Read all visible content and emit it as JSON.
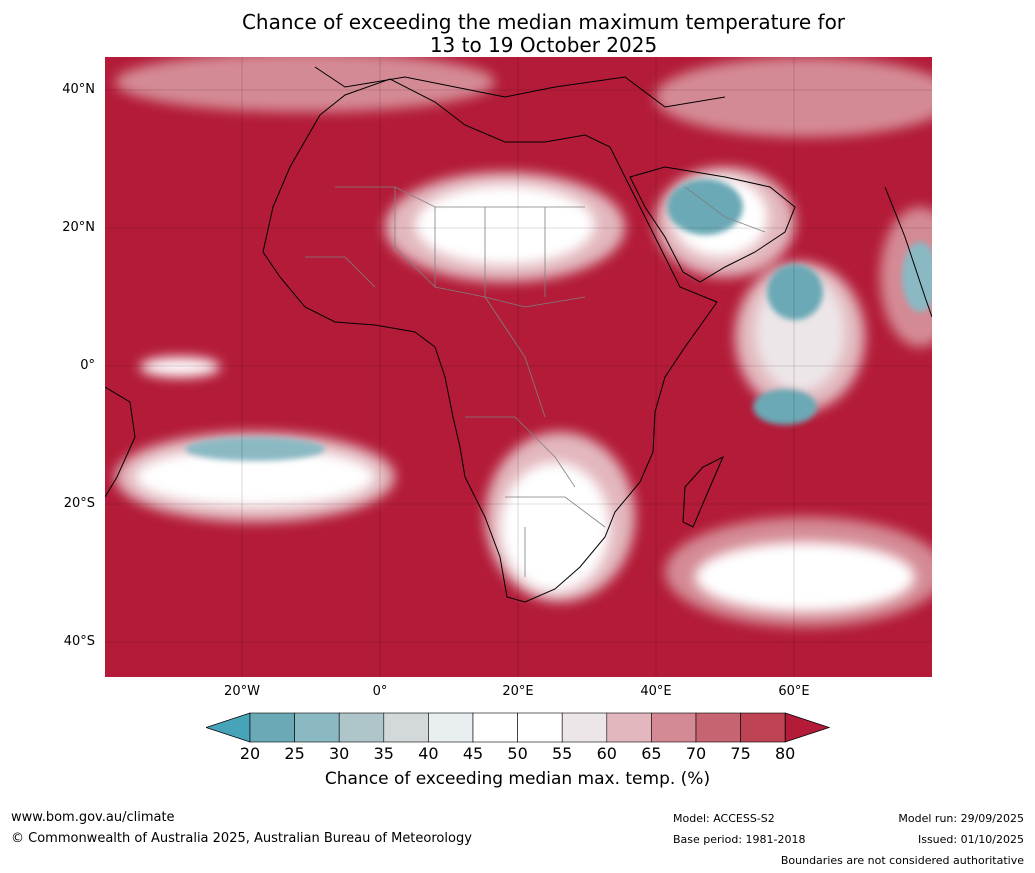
{
  "title": {
    "line1": "Chance of exceeding the median maximum temperature for",
    "line2": "13 to 19 October 2025"
  },
  "map": {
    "lat_labels": [
      "40°N",
      "20°N",
      "0°",
      "20°S",
      "40°S"
    ],
    "lon_labels": [
      "20°W",
      "0°",
      "20°E",
      "40°E",
      "60°E"
    ],
    "colors": {
      "high": "#b31b38",
      "mid": "#ffffff",
      "low": "#47a4b8",
      "coast": "#000000",
      "border": "#808080"
    }
  },
  "colorbar": {
    "ticks": [
      "20",
      "25",
      "30",
      "35",
      "40",
      "45",
      "50",
      "55",
      "60",
      "65",
      "70",
      "75",
      "80"
    ],
    "colors": [
      "#47a4b8",
      "#6aa9b5",
      "#8ab9c4",
      "#aec5ca",
      "#d3d8da",
      "#e9eef0",
      "#ffffff",
      "#ffffff",
      "#ede6e8",
      "#e2b7bd",
      "#d48a94",
      "#c76473",
      "#bd4353",
      "#b31b38"
    ],
    "label": "Chance of exceeding median max. temp. (%)"
  },
  "footer": {
    "website": "www.bom.gov.au/climate",
    "copyright": "© Commonwealth of Australia 2025, Australian Bureau of Meteorology",
    "model": "Model: ACCESS-S2",
    "base_period": "Base period: 1981-2018",
    "model_run": "Model run: 29/09/2025",
    "issued": "Issued: 01/10/2025",
    "disclaimer": "Boundaries are not considered authoritative"
  }
}
